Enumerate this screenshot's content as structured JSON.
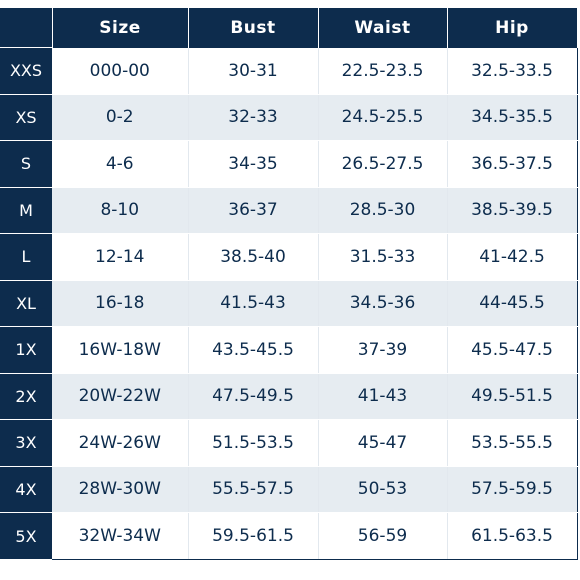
{
  "header": {
    "columns": [
      "Size",
      "Bust",
      "Waist",
      "Hip"
    ]
  },
  "rows": [
    {
      "label": "XXS",
      "size": "000-00",
      "bust": "30-31",
      "waist": "22.5-23.5",
      "hip": "32.5-33.5"
    },
    {
      "label": "XS",
      "size": "0-2",
      "bust": "32-33",
      "waist": "24.5-25.5",
      "hip": "34.5-35.5"
    },
    {
      "label": "S",
      "size": "4-6",
      "bust": "34-35",
      "waist": "26.5-27.5",
      "hip": "36.5-37.5"
    },
    {
      "label": "M",
      "size": "8-10",
      "bust": "36-37",
      "waist": "28.5-30",
      "hip": "38.5-39.5"
    },
    {
      "label": "L",
      "size": "12-14",
      "bust": "38.5-40",
      "waist": "31.5-33",
      "hip": "41-42.5"
    },
    {
      "label": "XL",
      "size": "16-18",
      "bust": "41.5-43",
      "waist": "34.5-36",
      "hip": "44-45.5"
    },
    {
      "label": "1X",
      "size": "16W-18W",
      "bust": "43.5-45.5",
      "waist": "37-39",
      "hip": "45.5-47.5"
    },
    {
      "label": "2X",
      "size": "20W-22W",
      "bust": "47.5-49.5",
      "waist": "41-43",
      "hip": "49.5-51.5"
    },
    {
      "label": "3X",
      "size": "24W-26W",
      "bust": "51.5-53.5",
      "waist": "45-47",
      "hip": "53.5-55.5"
    },
    {
      "label": "4X",
      "size": "28W-30W",
      "bust": "55.5-57.5",
      "waist": "50-53",
      "hip": "57.5-59.5"
    },
    {
      "label": "5X",
      "size": "32W-34W",
      "bust": "59.5-61.5",
      "waist": "56-59",
      "hip": "61.5-63.5"
    }
  ],
  "colors": {
    "header_bg": "#0d2c4d",
    "header_text": "#ffffff",
    "cell_text": "#0d2c4d",
    "alt_row_bg": "#e6ecf1"
  }
}
